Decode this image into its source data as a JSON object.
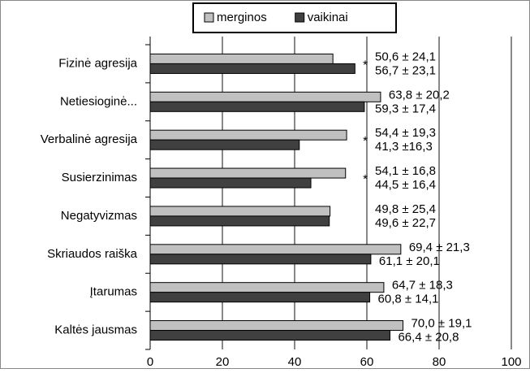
{
  "chart_data": {
    "type": "bar",
    "orientation": "horizontal",
    "categories": [
      "Fizinė agresija",
      "Netiesioginė...",
      "Verbalinė agresija",
      "Susierzinimas",
      "Negatyvizmas",
      "Skriaudos  raiška",
      "Įtarumas",
      "Kaltės jausmas"
    ],
    "series": [
      {
        "name": "merginos",
        "color": "#c0c0c0",
        "values": [
          50.6,
          63.8,
          54.4,
          54.1,
          49.8,
          69.4,
          64.7,
          70.0
        ],
        "value_labels": [
          "50,6 ± 24,1",
          "63,8 ± 20,2",
          "54,4 ± 19,3",
          "54,1 ± 16,8",
          "49,8 ± 25,4",
          "69,4 ± 21,3",
          "64,7 ± 18,3",
          "70,0 ± 19,1"
        ]
      },
      {
        "name": "vaikinai",
        "color": "#404040",
        "values": [
          56.7,
          59.3,
          41.3,
          44.5,
          49.6,
          61.1,
          60.8,
          66.4
        ],
        "value_labels": [
          "56,7 ± 23,1",
          "59,3 ± 17,4",
          "41,3 ±16,3",
          "44,5 ± 16,4",
          "49,6 ± 22,7",
          "61,1 ± 20,1",
          "60,8 ± 14,1",
          "66,4 ± 20,8"
        ]
      }
    ],
    "significance": [
      "*",
      null,
      "*",
      "*",
      null,
      null,
      null,
      null
    ],
    "xlim": [
      0,
      100
    ],
    "xticks": [
      0,
      20,
      40,
      60,
      80,
      100
    ],
    "grid": true,
    "legend": "top"
  }
}
